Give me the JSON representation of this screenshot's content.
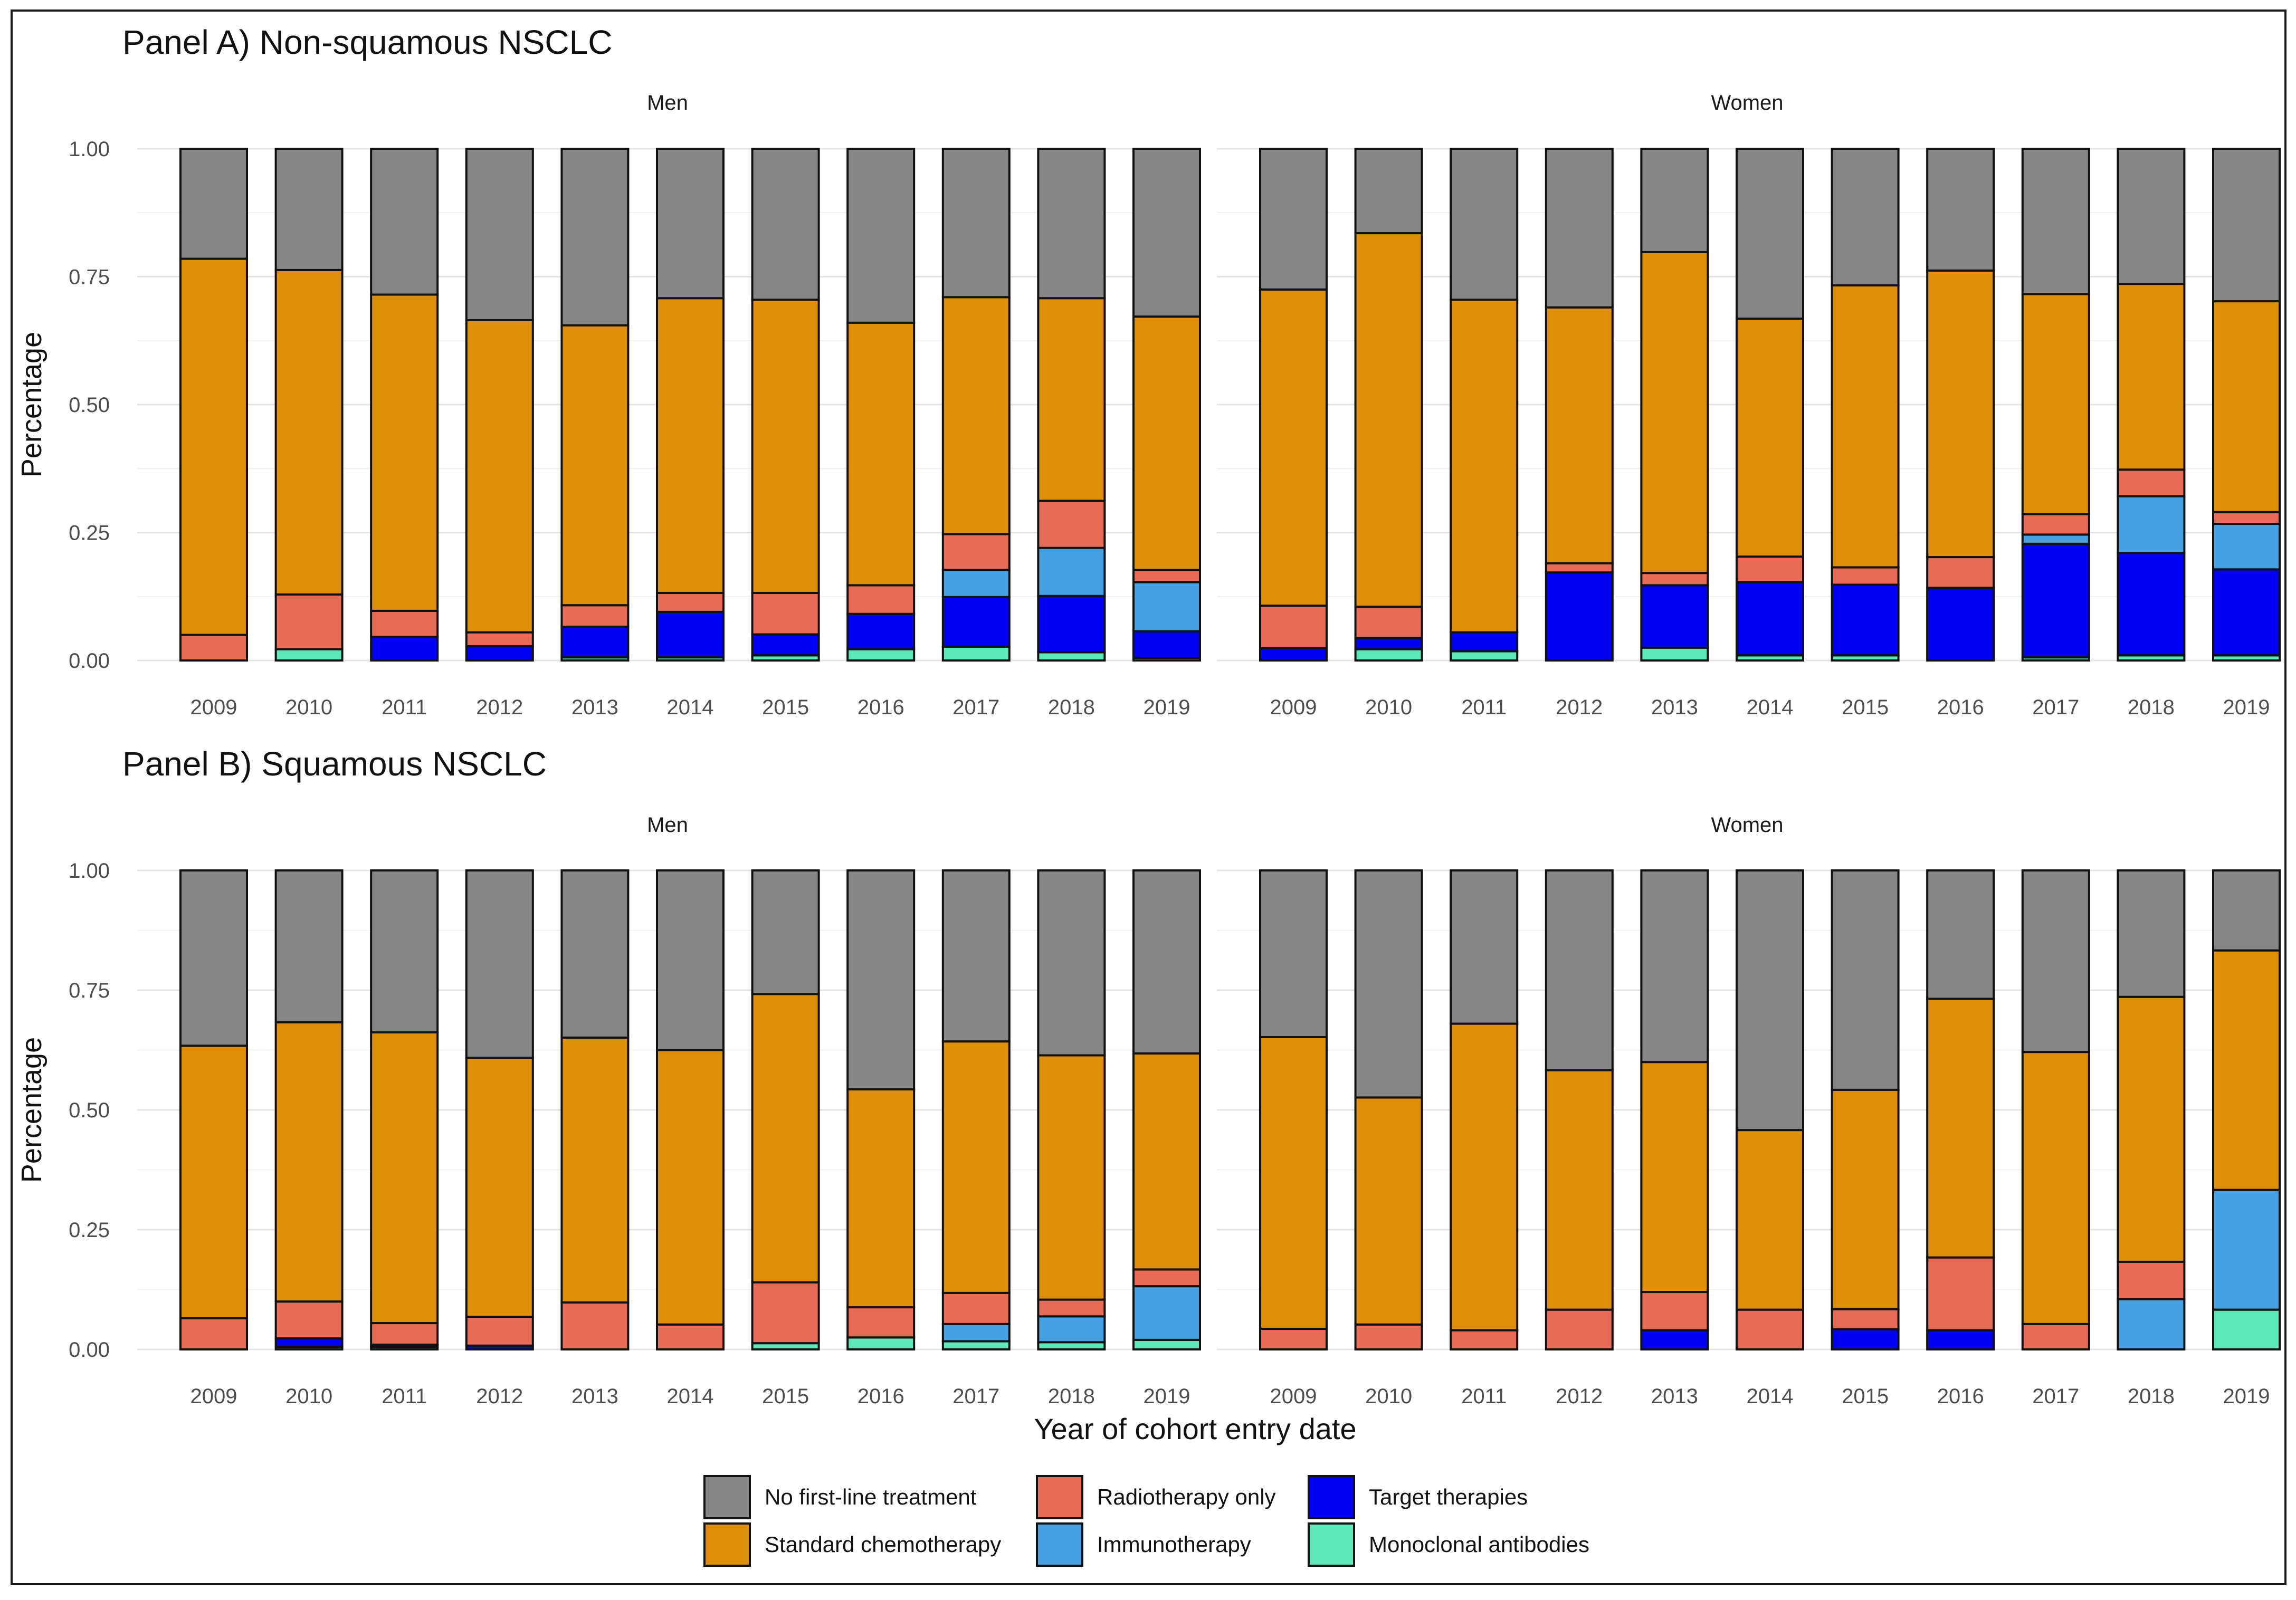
{
  "chart_data": {
    "type": "bar",
    "subtype": "stacked_100_percent_faceted",
    "xlabel": "Year of cohort entry date",
    "ylabel": "Percentage",
    "ylim": [
      0,
      1
    ],
    "yticks": [
      "0.00",
      "0.25",
      "0.50",
      "0.75",
      "1.00"
    ],
    "categories": [
      "2009",
      "2010",
      "2011",
      "2012",
      "2013",
      "2014",
      "2015",
      "2016",
      "2017",
      "2018",
      "2019"
    ],
    "stack_order_bottom_to_top": [
      "Monoclonal antibodies",
      "Target therapies",
      "Immunotherapy",
      "Radiotherapy only",
      "Standard chemotherapy",
      "No first-line treatment"
    ],
    "legend": {
      "position": "bottom",
      "entries": [
        {
          "label": "No first-line treatment",
          "color": "#868686"
        },
        {
          "label": "Standard chemotherapy",
          "color": "#DF8E0A"
        },
        {
          "label": "Radiotherapy only",
          "color": "#E86C55"
        },
        {
          "label": "Immunotherapy",
          "color": "#45A1E2"
        },
        {
          "label": "Target therapies",
          "color": "#0000F5"
        },
        {
          "label": "Monoclonal antibodies",
          "color": "#5CE8B8"
        }
      ]
    },
    "panels": [
      {
        "title": "Panel A) Non-squamous NSCLC",
        "facets": [
          {
            "label": "Men",
            "series": [
              {
                "name": "Monoclonal antibodies",
                "values": [
                  0.0,
                  0.022,
                  0.0,
                  0.0,
                  0.006,
                  0.006,
                  0.01,
                  0.022,
                  0.027,
                  0.016,
                  0.005
                ]
              },
              {
                "name": "Target therapies",
                "values": [
                  0.0,
                  0.0,
                  0.046,
                  0.028,
                  0.06,
                  0.089,
                  0.041,
                  0.069,
                  0.097,
                  0.11,
                  0.052
                ]
              },
              {
                "name": "Immunotherapy",
                "values": [
                  0.0,
                  0.0,
                  0.0,
                  0.0,
                  0.0,
                  0.0,
                  0.0,
                  0.0,
                  0.053,
                  0.094,
                  0.096
                ]
              },
              {
                "name": "Radiotherapy only",
                "values": [
                  0.05,
                  0.107,
                  0.051,
                  0.027,
                  0.042,
                  0.037,
                  0.081,
                  0.056,
                  0.07,
                  0.092,
                  0.024
                ]
              },
              {
                "name": "Standard chemotherapy",
                "values": [
                  0.735,
                  0.634,
                  0.618,
                  0.61,
                  0.547,
                  0.576,
                  0.573,
                  0.513,
                  0.463,
                  0.396,
                  0.495
                ]
              },
              {
                "name": "No first-line treatment",
                "values": [
                  0.215,
                  0.237,
                  0.285,
                  0.335,
                  0.345,
                  0.292,
                  0.295,
                  0.34,
                  0.29,
                  0.292,
                  0.328
                ]
              }
            ]
          },
          {
            "label": "Women",
            "series": [
              {
                "name": "Monoclonal antibodies",
                "values": [
                  0.0,
                  0.022,
                  0.018,
                  0.0,
                  0.025,
                  0.01,
                  0.01,
                  0.0,
                  0.006,
                  0.01,
                  0.01
                ]
              },
              {
                "name": "Target therapies",
                "values": [
                  0.024,
                  0.022,
                  0.037,
                  0.172,
                  0.122,
                  0.143,
                  0.138,
                  0.142,
                  0.222,
                  0.2,
                  0.168
                ]
              },
              {
                "name": "Immunotherapy",
                "values": [
                  0.0,
                  0.0,
                  0.0,
                  0.0,
                  0.0,
                  0.0,
                  0.0,
                  0.0,
                  0.018,
                  0.111,
                  0.089
                ]
              },
              {
                "name": "Radiotherapy only",
                "values": [
                  0.083,
                  0.061,
                  0.0,
                  0.018,
                  0.024,
                  0.05,
                  0.034,
                  0.06,
                  0.04,
                  0.052,
                  0.023
                ]
              },
              {
                "name": "Standard chemotherapy",
                "values": [
                  0.618,
                  0.73,
                  0.65,
                  0.5,
                  0.627,
                  0.465,
                  0.551,
                  0.56,
                  0.43,
                  0.363,
                  0.412
                ]
              },
              {
                "name": "No first-line treatment",
                "values": [
                  0.275,
                  0.165,
                  0.295,
                  0.31,
                  0.202,
                  0.332,
                  0.267,
                  0.238,
                  0.284,
                  0.264,
                  0.298
                ]
              }
            ]
          }
        ]
      },
      {
        "title": "Panel B) Squamous NSCLC",
        "facets": [
          {
            "label": "Men",
            "series": [
              {
                "name": "Monoclonal antibodies",
                "values": [
                  0.0,
                  0.005,
                  0.005,
                  0.0,
                  0.0,
                  0.0,
                  0.013,
                  0.025,
                  0.017,
                  0.015,
                  0.02
                ]
              },
              {
                "name": "Target therapies",
                "values": [
                  0.0,
                  0.018,
                  0.005,
                  0.008,
                  0.0,
                  0.0,
                  0.0,
                  0.0,
                  0.0,
                  0.0,
                  0.0
                ]
              },
              {
                "name": "Immunotherapy",
                "values": [
                  0.0,
                  0.0,
                  0.0,
                  0.0,
                  0.0,
                  0.0,
                  0.0,
                  0.0,
                  0.036,
                  0.054,
                  0.112
                ]
              },
              {
                "name": "Radiotherapy only",
                "values": [
                  0.065,
                  0.077,
                  0.045,
                  0.06,
                  0.098,
                  0.052,
                  0.127,
                  0.063,
                  0.065,
                  0.035,
                  0.035
                ]
              },
              {
                "name": "Standard chemotherapy",
                "values": [
                  0.569,
                  0.583,
                  0.607,
                  0.541,
                  0.553,
                  0.573,
                  0.602,
                  0.455,
                  0.525,
                  0.51,
                  0.451
                ]
              },
              {
                "name": "No first-line treatment",
                "values": [
                  0.366,
                  0.317,
                  0.338,
                  0.391,
                  0.349,
                  0.375,
                  0.258,
                  0.457,
                  0.357,
                  0.386,
                  0.382
                ]
              }
            ]
          },
          {
            "label": "Women",
            "series": [
              {
                "name": "Monoclonal antibodies",
                "values": [
                  0.0,
                  0.0,
                  0.0,
                  0.0,
                  0.0,
                  0.0,
                  0.0,
                  0.0,
                  0.0,
                  0.0,
                  0.083
                ]
              },
              {
                "name": "Target therapies",
                "values": [
                  0.0,
                  0.0,
                  0.0,
                  0.0,
                  0.04,
                  0.0,
                  0.042,
                  0.04,
                  0.0,
                  0.0,
                  0.0
                ]
              },
              {
                "name": "Immunotherapy",
                "values": [
                  0.0,
                  0.0,
                  0.0,
                  0.0,
                  0.0,
                  0.0,
                  0.0,
                  0.0,
                  0.0,
                  0.105,
                  0.25
                ]
              },
              {
                "name": "Radiotherapy only",
                "values": [
                  0.043,
                  0.052,
                  0.04,
                  0.083,
                  0.08,
                  0.083,
                  0.042,
                  0.152,
                  0.053,
                  0.078,
                  0.0
                ]
              },
              {
                "name": "Standard chemotherapy",
                "values": [
                  0.609,
                  0.474,
                  0.64,
                  0.5,
                  0.48,
                  0.375,
                  0.458,
                  0.54,
                  0.568,
                  0.553,
                  0.5
                ]
              },
              {
                "name": "No first-line treatment",
                "values": [
                  0.348,
                  0.474,
                  0.32,
                  0.417,
                  0.4,
                  0.542,
                  0.458,
                  0.268,
                  0.379,
                  0.264,
                  0.167
                ]
              }
            ]
          }
        ]
      }
    ]
  }
}
